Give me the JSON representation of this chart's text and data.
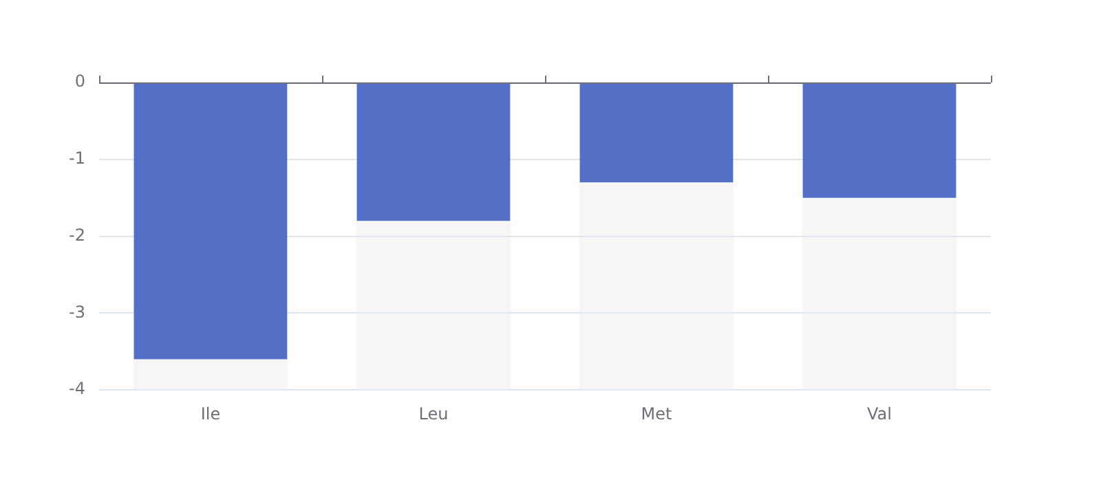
{
  "chart_data": {
    "type": "bar",
    "categories": [
      "Ile",
      "Leu",
      "Met",
      "Val"
    ],
    "values": [
      -3.6,
      -1.8,
      -1.3,
      -1.5
    ],
    "color": "#5470c6",
    "ylim": [
      -4,
      0
    ],
    "yticks": [
      -4,
      -3,
      -2,
      -1,
      0
    ],
    "grid": "y"
  }
}
